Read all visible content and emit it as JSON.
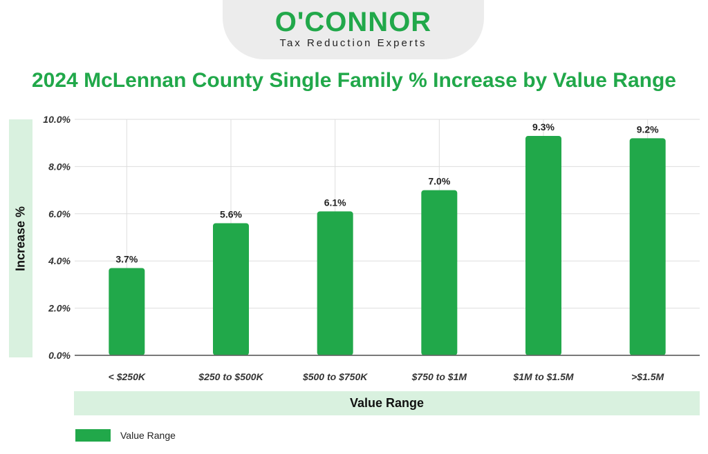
{
  "logo": {
    "name": "O'CONNOR",
    "tagline": "Tax Reduction Experts"
  },
  "chart_data": {
    "type": "bar",
    "title": "2024 McLennan County Single Family % Increase by Value Range",
    "xlabel": "Value Range",
    "ylabel": "Increase %",
    "categories": [
      "< $250K",
      "$250 to $500K",
      "$500 to $750K",
      "$750 to $1M",
      "$1M to $1.5M",
      ">$1.5M"
    ],
    "series": [
      {
        "name": "Value Range",
        "values": [
          3.7,
          5.6,
          6.1,
          7.0,
          9.3,
          9.2
        ],
        "labels": [
          "3.7%",
          "5.6%",
          "6.1%",
          "7.0%",
          "9.3%",
          "9.2%"
        ],
        "color": "#21a84a"
      }
    ],
    "ylim": [
      0,
      10
    ],
    "yticks": [
      0,
      2,
      4,
      6,
      8,
      10
    ],
    "ytick_labels": [
      "0.0%",
      "2.0%",
      "4.0%",
      "6.0%",
      "8.0%",
      "10.0%"
    ],
    "grid": true,
    "legend": "bottom-left"
  }
}
